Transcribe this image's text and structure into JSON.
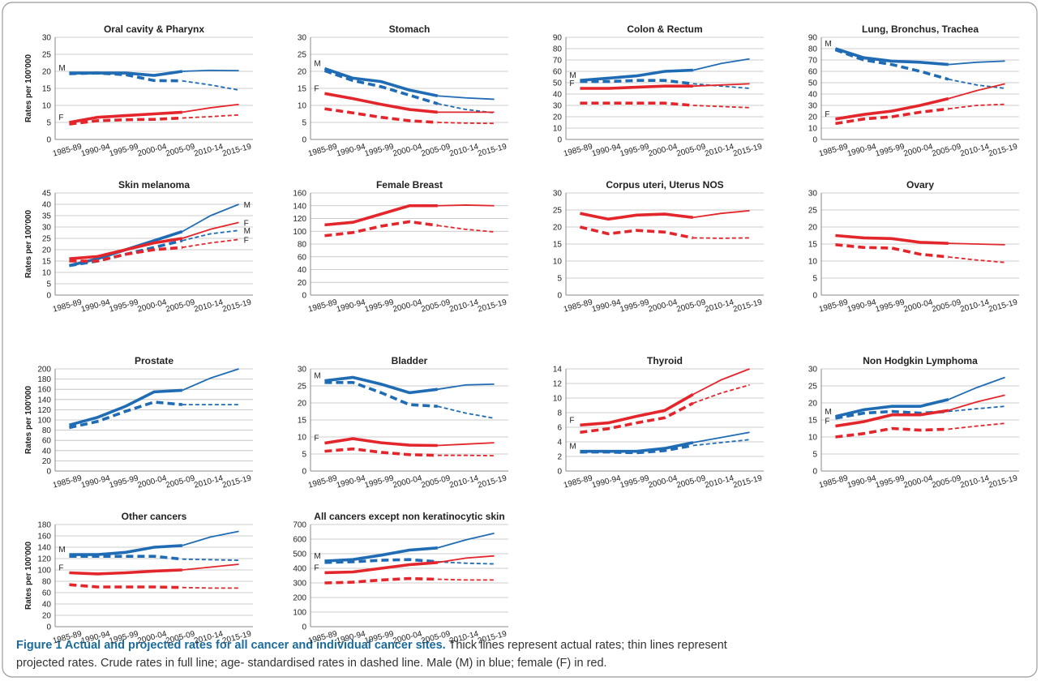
{
  "chart_data": [
    {
      "type": "line",
      "title": "Oral cavity & Pharynx",
      "ylabel": "Rates per 100'000",
      "categories": [
        "1985-89",
        "1990-94",
        "1995-99",
        "2000-04",
        "2005-09",
        "2010-14",
        "2015-19"
      ],
      "ylim": [
        0,
        30
      ],
      "yticks": [
        0,
        5,
        10,
        15,
        20,
        25,
        30
      ],
      "grid": true,
      "series": [
        {
          "color": "#1f6cb4",
          "dashed": false,
          "label": "M",
          "label_at": "start",
          "values": [
            19.5,
            19.5,
            19.5,
            18.8,
            20,
            20.3,
            20.2
          ]
        },
        {
          "color": "#1f6cb4",
          "dashed": true,
          "values": [
            19.3,
            19.5,
            19,
            17.3,
            17.2,
            16,
            14.5
          ]
        },
        {
          "color": "#e3262b",
          "dashed": false,
          "label": "F",
          "label_at": "start",
          "values": [
            5,
            6.5,
            7,
            7.5,
            8,
            9.3,
            10.3
          ]
        },
        {
          "color": "#e3262b",
          "dashed": true,
          "values": [
            4.5,
            5.5,
            5.8,
            5.9,
            6.3,
            6.7,
            7.2
          ]
        }
      ]
    },
    {
      "type": "line",
      "title": "Stomach",
      "categories": [
        "1985-89",
        "1990-94",
        "1995-99",
        "2000-04",
        "2005-09",
        "2010-14",
        "2015-19"
      ],
      "ylim": [
        0,
        30
      ],
      "yticks": [
        0,
        5,
        10,
        15,
        20,
        25,
        30
      ],
      "grid": true,
      "series": [
        {
          "color": "#1f6cb4",
          "dashed": false,
          "label": "M",
          "label_at": "start",
          "values": [
            20.8,
            18,
            17,
            14.5,
            12.8,
            12.2,
            11.8
          ]
        },
        {
          "color": "#1f6cb4",
          "dashed": true,
          "values": [
            20.2,
            17.3,
            15.5,
            13,
            10.5,
            8.8,
            7.8
          ]
        },
        {
          "color": "#e3262b",
          "dashed": false,
          "label": "F",
          "label_at": "start",
          "values": [
            13.5,
            12,
            10.3,
            8.8,
            8,
            8,
            8
          ]
        },
        {
          "color": "#e3262b",
          "dashed": true,
          "values": [
            9,
            7.8,
            6.5,
            5.5,
            5,
            4.8,
            4.7
          ]
        }
      ]
    },
    {
      "type": "line",
      "title": "Colon & Rectum",
      "categories": [
        "1985-89",
        "1990-94",
        "1995-99",
        "2000-04",
        "2005-09",
        "2010-14",
        "2015-19"
      ],
      "ylim": [
        0,
        90
      ],
      "yticks": [
        0,
        10,
        20,
        30,
        40,
        50,
        60,
        70,
        80,
        90
      ],
      "grid": true,
      "series": [
        {
          "color": "#1f6cb4",
          "dashed": false,
          "label": "M",
          "label_at": "start",
          "values": [
            52,
            54,
            56,
            60,
            61,
            67,
            71
          ]
        },
        {
          "color": "#1f6cb4",
          "dashed": true,
          "values": [
            51,
            51,
            52,
            52,
            49,
            47,
            45
          ]
        },
        {
          "color": "#e3262b",
          "dashed": false,
          "label": "F",
          "label_at": "start",
          "values": [
            45,
            45,
            46,
            47,
            47,
            48,
            49
          ]
        },
        {
          "color": "#e3262b",
          "dashed": true,
          "values": [
            32,
            32,
            32,
            32,
            30,
            29,
            28
          ]
        }
      ]
    },
    {
      "type": "line",
      "title": "Lung, Bronchus, Trachea",
      "categories": [
        "1985-89",
        "1990-94",
        "1995-99",
        "2000-04",
        "2005-09",
        "2010-14",
        "2015-19"
      ],
      "ylim": [
        0,
        90
      ],
      "yticks": [
        0,
        10,
        20,
        30,
        40,
        50,
        60,
        70,
        80,
        90
      ],
      "grid": true,
      "series": [
        {
          "color": "#1f6cb4",
          "dashed": false,
          "label": "M",
          "label_at": "start",
          "values": [
            80,
            72,
            69,
            68,
            66,
            68,
            69
          ]
        },
        {
          "color": "#1f6cb4",
          "dashed": true,
          "values": [
            79,
            70,
            66,
            60,
            53,
            48,
            45
          ]
        },
        {
          "color": "#e3262b",
          "dashed": false,
          "label": "F",
          "label_at": "start",
          "values": [
            18,
            22,
            25,
            30,
            36,
            43,
            49
          ]
        },
        {
          "color": "#e3262b",
          "dashed": true,
          "values": [
            14,
            18,
            20,
            24,
            27,
            30,
            31
          ]
        }
      ]
    },
    {
      "type": "line",
      "title": "Skin melanoma",
      "ylabel": "Rates per 100'000",
      "categories": [
        "1985-89",
        "1990-94",
        "1995-99",
        "2000-04",
        "2005-09",
        "2010-14",
        "2015-19"
      ],
      "ylim": [
        0,
        45
      ],
      "yticks": [
        0,
        5,
        10,
        15,
        20,
        25,
        30,
        35,
        40,
        45
      ],
      "grid": true,
      "series": [
        {
          "color": "#1f6cb4",
          "dashed": false,
          "label": "M",
          "label_at": "end",
          "values": [
            13,
            16,
            20,
            24,
            28,
            35,
            40
          ]
        },
        {
          "color": "#1f6cb4",
          "dashed": true,
          "label": "M",
          "label_at": "end",
          "values": [
            13,
            15,
            18,
            21,
            24,
            27,
            28.5
          ]
        },
        {
          "color": "#e3262b",
          "dashed": false,
          "label": "F",
          "label_at": "end",
          "values": [
            16,
            17,
            20,
            23,
            25,
            29,
            32
          ]
        },
        {
          "color": "#e3262b",
          "dashed": true,
          "label": "F",
          "label_at": "end",
          "values": [
            15,
            15,
            18,
            20,
            21,
            23,
            24.5
          ]
        }
      ]
    },
    {
      "type": "line",
      "title": "Female Breast",
      "categories": [
        "1985-89",
        "1990-94",
        "1995-99",
        "2000-04",
        "2005-09",
        "2010-14",
        "2015-19"
      ],
      "ylim": [
        0,
        160
      ],
      "yticks": [
        0,
        20,
        40,
        60,
        80,
        100,
        120,
        140,
        160
      ],
      "grid": true,
      "series": [
        {
          "color": "#e3262b",
          "dashed": false,
          "values": [
            110,
            114,
            127,
            140,
            140,
            141,
            140
          ]
        },
        {
          "color": "#e3262b",
          "dashed": true,
          "values": [
            93,
            98,
            108,
            115,
            109,
            103,
            99
          ]
        }
      ]
    },
    {
      "type": "line",
      "title": "Corpus uteri, Uterus NOS",
      "categories": [
        "1985-89",
        "1990-94",
        "1995-99",
        "2000-04",
        "2005-09",
        "2010-14",
        "2015-19"
      ],
      "ylim": [
        0,
        30
      ],
      "yticks": [
        0,
        5,
        10,
        15,
        20,
        25,
        30
      ],
      "grid": true,
      "series": [
        {
          "color": "#e3262b",
          "dashed": false,
          "values": [
            24,
            22.3,
            23.5,
            23.8,
            22.8,
            24,
            24.8
          ]
        },
        {
          "color": "#e3262b",
          "dashed": true,
          "values": [
            20,
            18,
            19,
            18.5,
            16.8,
            16.7,
            16.8
          ]
        }
      ]
    },
    {
      "type": "line",
      "title": "Ovary",
      "categories": [
        "1985-89",
        "1990-94",
        "1995-99",
        "2000-04",
        "2005-09",
        "2010-14",
        "2015-19"
      ],
      "ylim": [
        0,
        30
      ],
      "yticks": [
        0,
        5,
        10,
        15,
        20,
        25,
        30
      ],
      "grid": true,
      "series": [
        {
          "color": "#e3262b",
          "dashed": false,
          "values": [
            17.5,
            16.8,
            16.6,
            15.5,
            15.2,
            15,
            14.8
          ]
        },
        {
          "color": "#e3262b",
          "dashed": true,
          "values": [
            14.8,
            14,
            13.8,
            12,
            11.2,
            10.3,
            9.6
          ]
        }
      ]
    },
    {
      "type": "line",
      "title": "Prostate",
      "ylabel": "Rates per 100'000",
      "categories": [
        "1985-89",
        "1990-94",
        "1995-99",
        "2000-04",
        "2005-09",
        "2010-14",
        "2015-19"
      ],
      "ylim": [
        0,
        200
      ],
      "yticks": [
        0,
        20,
        40,
        60,
        80,
        100,
        120,
        140,
        160,
        180,
        200
      ],
      "grid": true,
      "series": [
        {
          "color": "#1f6cb4",
          "dashed": false,
          "values": [
            90,
            105,
            127,
            155,
            158,
            182,
            200
          ]
        },
        {
          "color": "#1f6cb4",
          "dashed": true,
          "values": [
            85,
            97,
            117,
            135,
            130,
            130,
            130
          ]
        }
      ]
    },
    {
      "type": "line",
      "title": "Bladder",
      "categories": [
        "1985-89",
        "1990-94",
        "1995-99",
        "2000-04",
        "2005-09",
        "2010-14",
        "2015-19"
      ],
      "ylim": [
        0,
        30
      ],
      "yticks": [
        0,
        5,
        10,
        15,
        20,
        25,
        30
      ],
      "grid": true,
      "series": [
        {
          "color": "#1f6cb4",
          "dashed": false,
          "label": "M",
          "label_at": "start",
          "values": [
            26.5,
            27.5,
            25.5,
            23,
            24,
            25.3,
            25.5
          ]
        },
        {
          "color": "#1f6cb4",
          "dashed": true,
          "values": [
            26,
            26,
            23,
            19.5,
            19,
            17,
            15.5
          ]
        },
        {
          "color": "#e3262b",
          "dashed": false,
          "label": "F",
          "label_at": "start",
          "values": [
            8.2,
            9.5,
            8.3,
            7.6,
            7.5,
            7.9,
            8.3
          ]
        },
        {
          "color": "#e3262b",
          "dashed": true,
          "values": [
            5.8,
            6.5,
            5.5,
            4.8,
            4.6,
            4.6,
            4.5
          ]
        }
      ]
    },
    {
      "type": "line",
      "title": "Thyroid",
      "categories": [
        "1985-89",
        "1990-94",
        "1995-99",
        "2000-04",
        "2005-09",
        "2010-14",
        "2015-19"
      ],
      "ylim": [
        0,
        14
      ],
      "yticks": [
        0,
        2,
        4,
        6,
        8,
        10,
        12,
        14
      ],
      "grid": true,
      "series": [
        {
          "color": "#e3262b",
          "dashed": false,
          "label": "F",
          "label_at": "start",
          "values": [
            6.3,
            6.6,
            7.5,
            8.3,
            10.5,
            12.5,
            14
          ]
        },
        {
          "color": "#e3262b",
          "dashed": true,
          "values": [
            5.3,
            5.8,
            6.6,
            7.3,
            9.3,
            10.7,
            11.8
          ]
        },
        {
          "color": "#1f6cb4",
          "dashed": false,
          "label": "M",
          "label_at": "start",
          "values": [
            2.7,
            2.7,
            2.7,
            3.1,
            3.9,
            4.6,
            5.3
          ]
        },
        {
          "color": "#1f6cb4",
          "dashed": true,
          "values": [
            2.6,
            2.6,
            2.5,
            2.8,
            3.5,
            3.9,
            4.3
          ]
        }
      ]
    },
    {
      "type": "line",
      "title": "Non Hodgkin Lymphoma",
      "categories": [
        "1985-89",
        "1990-94",
        "1995-99",
        "2000-04",
        "2005-09",
        "2010-14",
        "2015-19"
      ],
      "ylim": [
        0,
        30
      ],
      "yticks": [
        0,
        5,
        10,
        15,
        20,
        25,
        30
      ],
      "grid": true,
      "series": [
        {
          "color": "#1f6cb4",
          "dashed": false,
          "label": "M",
          "label_at": "start",
          "values": [
            16,
            18,
            19,
            19,
            21,
            24.5,
            27.5
          ]
        },
        {
          "color": "#1f6cb4",
          "dashed": true,
          "values": [
            15.5,
            17,
            17.5,
            17,
            17.5,
            18.3,
            19
          ]
        },
        {
          "color": "#e3262b",
          "dashed": false,
          "label": "F",
          "label_at": "start",
          "values": [
            13.2,
            14.5,
            16.5,
            16.5,
            17.8,
            20.3,
            22.3
          ]
        },
        {
          "color": "#e3262b",
          "dashed": true,
          "values": [
            10,
            11,
            12.5,
            12,
            12.3,
            13.2,
            14
          ]
        }
      ]
    },
    {
      "type": "line",
      "title": "Other cancers",
      "ylabel": "Rates per 100'000",
      "categories": [
        "1985-89",
        "1990-94",
        "1995-99",
        "2000-04",
        "2005-09",
        "2010-14",
        "2015-19"
      ],
      "ylim": [
        0,
        180
      ],
      "yticks": [
        0,
        20,
        40,
        60,
        80,
        100,
        120,
        140,
        160,
        180
      ],
      "grid": true,
      "series": [
        {
          "color": "#1f6cb4",
          "dashed": false,
          "label": "M",
          "label_at": "start",
          "values": [
            127,
            127,
            131,
            140,
            143,
            158,
            168
          ]
        },
        {
          "color": "#1f6cb4",
          "dashed": true,
          "values": [
            124,
            124,
            124,
            124,
            119,
            118,
            117
          ]
        },
        {
          "color": "#e3262b",
          "dashed": false,
          "label": "F",
          "label_at": "start",
          "values": [
            95,
            93,
            95,
            98,
            100,
            105,
            110
          ]
        },
        {
          "color": "#e3262b",
          "dashed": true,
          "values": [
            74,
            70,
            70,
            70,
            69,
            68,
            68
          ]
        }
      ]
    },
    {
      "type": "line",
      "title": "All cancers except non keratinocytic skin",
      "categories": [
        "1985-89",
        "1990-94",
        "1995-99",
        "2000-04",
        "2005-09",
        "2010-14",
        "2015-19"
      ],
      "ylim": [
        0,
        700
      ],
      "yticks": [
        0,
        100,
        200,
        300,
        400,
        500,
        600,
        700
      ],
      "grid": true,
      "series": [
        {
          "color": "#1f6cb4",
          "dashed": false,
          "label": "M",
          "label_at": "start",
          "values": [
            450,
            460,
            490,
            525,
            540,
            595,
            640
          ]
        },
        {
          "color": "#1f6cb4",
          "dashed": true,
          "values": [
            440,
            445,
            455,
            460,
            445,
            435,
            430
          ]
        },
        {
          "color": "#e3262b",
          "dashed": false,
          "label": "F",
          "label_at": "start",
          "values": [
            370,
            375,
            400,
            425,
            440,
            470,
            485
          ]
        },
        {
          "color": "#e3262b",
          "dashed": true,
          "values": [
            300,
            305,
            320,
            330,
            325,
            320,
            320
          ]
        }
      ]
    }
  ],
  "caption": {
    "title": "Figure 1 Actual and projected rates for all cancer and individual cancer sites.",
    "lines": [
      " Thick lines represent actual rates; thin lines represent",
      "projected rates. Crude rates in full line; age- standardised rates in dashed line. Male (M) in blue; female (F) in red."
    ]
  }
}
